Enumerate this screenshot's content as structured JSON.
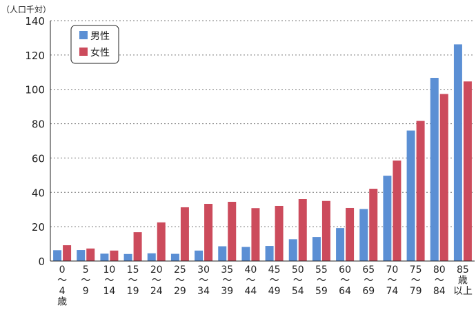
{
  "chart_data": {
    "type": "bar",
    "unit_label": "（人口千対）",
    "ylim": [
      0,
      140
    ],
    "yticks": [
      "0",
      "20",
      "40",
      "60",
      "80",
      "100",
      "120",
      "140"
    ],
    "grid": "horizontal-dotted",
    "legend_position": "top-left",
    "categories": [
      [
        "0",
        "～",
        "4",
        "歳"
      ],
      [
        "5",
        "～",
        "9"
      ],
      [
        "10",
        "～",
        "14"
      ],
      [
        "15",
        "～",
        "19"
      ],
      [
        "20",
        "～",
        "24"
      ],
      [
        "25",
        "～",
        "29"
      ],
      [
        "30",
        "～",
        "34"
      ],
      [
        "35",
        "～",
        "39"
      ],
      [
        "40",
        "～",
        "44"
      ],
      [
        "45",
        "～",
        "49"
      ],
      [
        "50",
        "～",
        "54"
      ],
      [
        "55",
        "～",
        "59"
      ],
      [
        "60",
        "～",
        "64"
      ],
      [
        "65",
        "～",
        "69"
      ],
      [
        "70",
        "～",
        "74"
      ],
      [
        "75",
        "～",
        "79"
      ],
      [
        "80",
        "～",
        "84"
      ],
      [
        "85",
        "歳",
        "以上"
      ]
    ],
    "series": [
      {
        "name": "男性",
        "color": "#5b8fd4",
        "values": [
          6.3,
          6.4,
          4.3,
          4.1,
          4.5,
          4.2,
          6.1,
          8.6,
          8.2,
          8.8,
          12.7,
          14.0,
          19.2,
          30.3,
          49.7,
          76.0,
          106.7,
          126.2
        ]
      },
      {
        "name": "女性",
        "color": "#cc4b5c",
        "values": [
          9.2,
          7.3,
          6.1,
          16.8,
          22.5,
          31.3,
          33.3,
          34.5,
          30.8,
          32.1,
          36.1,
          35.0,
          30.9,
          42.1,
          58.5,
          81.6,
          97.3,
          104.6
        ]
      }
    ]
  }
}
